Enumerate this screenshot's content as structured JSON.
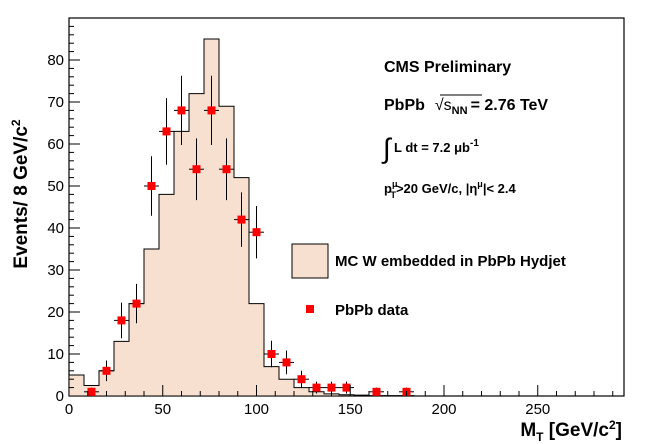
{
  "chart_data": {
    "type": "bar",
    "title": "",
    "xlabel": "M_T [GeV/c^2]",
    "ylabel": "Events/ 8 GeV/c^2",
    "xlim": [
      0,
      296
    ],
    "ylim": [
      0,
      90
    ],
    "x_ticks": [
      0,
      50,
      100,
      150,
      200,
      250
    ],
    "y_ticks": [
      0,
      10,
      20,
      30,
      40,
      50,
      60,
      70,
      80
    ],
    "histogram": {
      "name": "MC W embedded in PbPb Hydjet",
      "color": "#f7e0d0",
      "bin_edges": [
        0,
        8,
        16,
        24,
        32,
        40,
        48,
        56,
        64,
        72,
        80,
        88,
        96,
        104,
        112,
        120,
        128,
        136,
        144,
        152,
        160,
        168,
        176,
        184,
        296
      ],
      "values": [
        5,
        2.5,
        6,
        13,
        22,
        35,
        48,
        63,
        72,
        85,
        69,
        52,
        22,
        7,
        4,
        2,
        1,
        0.5,
        0.3,
        0.2,
        0.1,
        0.1,
        0.1,
        0
      ]
    },
    "data_points": {
      "name": "PbPb data",
      "color": "#ff0000",
      "x": [
        12,
        20,
        28,
        36,
        44,
        52,
        60,
        68,
        76,
        84,
        92,
        100,
        108,
        116,
        124,
        132,
        140,
        148,
        164,
        180
      ],
      "y": [
        1,
        6,
        18,
        22,
        50,
        63,
        68,
        54,
        68,
        54,
        42,
        39,
        10,
        8,
        4,
        2,
        2,
        2,
        1,
        1
      ]
    },
    "annotations": {
      "experiment": "CMS Preliminary",
      "system_label": "PbPb",
      "sqrt_s": "√s",
      "sqrt_s_sub": "NN",
      "energy": "= 2.76 TeV",
      "integral": "∫",
      "lumi_text": "L dt = 7.2 μb",
      "lumi_exp": "-1",
      "cut_p": "p",
      "cut_mu": "μ",
      "cut_T": "T",
      "cut_mid": ">20 GeV/c, |η",
      "cut_end": "|< 2.4"
    }
  },
  "labels": {
    "y_main": "Events/ 8 GeV/c",
    "y_exp": "2",
    "x_main": "M",
    "x_sub": "T",
    "x_unit": " [GeV/c",
    "x_exp": "2",
    "x_close": "]"
  }
}
